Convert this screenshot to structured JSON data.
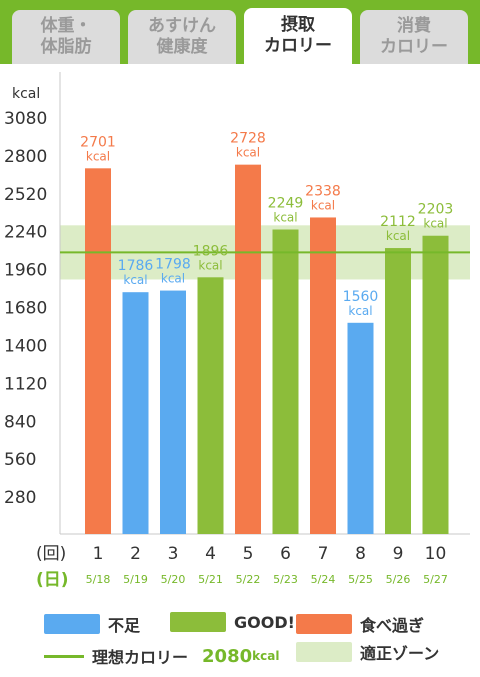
{
  "tabs": [
    {
      "line1": "体重・",
      "line2": "体脂肪",
      "active": false
    },
    {
      "line1": "あすけん",
      "line2": "健康度",
      "active": false
    },
    {
      "line1": "摂取",
      "line2": "カロリー",
      "active": true
    },
    {
      "line1": "消費",
      "line2": "カロリー",
      "active": false
    }
  ],
  "colors": {
    "header": "#76b82a",
    "under": "#5aaaf0",
    "good": "#8cbd3a",
    "over": "#f47a4a",
    "ideal_line": "#76b82a",
    "zone": "#dcecc6"
  },
  "chart_data": {
    "type": "bar",
    "ylabel": "kcal",
    "yticks": [
      280,
      560,
      840,
      1120,
      1400,
      1680,
      1960,
      2240,
      2520,
      2800,
      3080
    ],
    "ylim": [
      0,
      3080
    ],
    "x_prefix_label": "(回)",
    "date_prefix_label": "(日)",
    "categories": [
      "1",
      "2",
      "3",
      "4",
      "5",
      "6",
      "7",
      "8",
      "9",
      "10"
    ],
    "dates": [
      "5/18",
      "5/19",
      "5/20",
      "5/21",
      "5/22",
      "5/23",
      "5/24",
      "5/25",
      "5/26",
      "5/27"
    ],
    "values": [
      2701,
      1786,
      1798,
      1896,
      2728,
      2249,
      2338,
      1560,
      2112,
      2203
    ],
    "status": [
      "over",
      "under",
      "under",
      "good",
      "over",
      "good",
      "over",
      "under",
      "good",
      "good"
    ],
    "value_unit": "kcal",
    "ideal_calories": 2080,
    "zone": [
      1880,
      2280
    ]
  },
  "legend": {
    "under_label": "不足",
    "good_label": "GOOD!",
    "over_label": "食べ過ぎ",
    "ideal_label": "理想カロリー",
    "ideal_value": "2080",
    "ideal_unit": "kcal",
    "zone_label": "適正ゾーン"
  }
}
